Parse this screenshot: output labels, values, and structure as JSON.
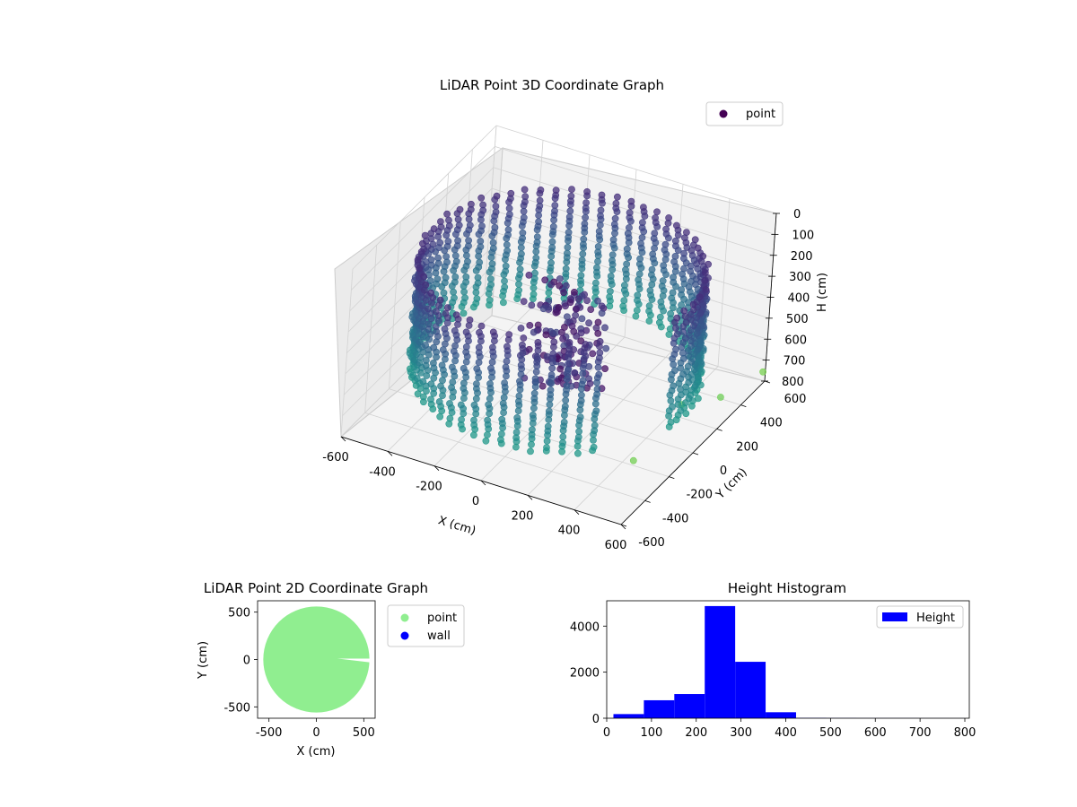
{
  "chart_data": [
    {
      "type": "scatter",
      "projection": "3d",
      "title": "LiDAR Point 3D Coordinate Graph",
      "xlabel": "X (cm)",
      "ylabel": "Y (cm)",
      "zlabel": "H (cm)",
      "xlim": [
        -600,
        600
      ],
      "ylim": [
        -600,
        600
      ],
      "zlim": [
        800,
        0
      ],
      "xticks": [
        "-600",
        "-400",
        "-200",
        "0",
        "200",
        "400",
        "600"
      ],
      "yticks": [
        "-600",
        "-400",
        "-200",
        "0",
        "200",
        "400",
        "600"
      ],
      "zticks": [
        "0",
        "100",
        "200",
        "300",
        "400",
        "500",
        "600",
        "700",
        "800"
      ],
      "colormap": "viridis",
      "grid": true,
      "legend": {
        "placement": "top-right",
        "entries": [
          {
            "label": "point",
            "color": "#440154"
          }
        ]
      },
      "series": [
        {
          "name": "point",
          "description_of_shape": "ring of vertical scan columns",
          "ring_radius": 560,
          "h_range": [
            120,
            640
          ],
          "extra_points": [
            [
              470,
              -250,
              740
            ],
            [
              520,
              40,
              620
            ],
            [
              560,
              300,
              720
            ],
            [
              590,
              600,
              760
            ]
          ]
        }
      ]
    },
    {
      "type": "scatter",
      "title": "LiDAR Point 2D Coordinate Graph",
      "xlabel": "X (cm)",
      "ylabel": "Y (cm)",
      "xlim": [
        -620,
        620
      ],
      "ylim": [
        -620,
        620
      ],
      "xticks": [
        "-500",
        "0",
        "500"
      ],
      "yticks": [
        "500",
        "0",
        "-500"
      ],
      "grid": false,
      "legend": {
        "placement": "outside-right",
        "entries": [
          {
            "label": "point",
            "color": "#90ee90"
          },
          {
            "label": "wall",
            "color": "#0000ff"
          }
        ]
      },
      "series": [
        {
          "name": "point",
          "color": "#90ee90",
          "shape": "disc",
          "radius": 560,
          "center": [
            0,
            0
          ]
        },
        {
          "name": "wall",
          "color": "#0000ff",
          "points": []
        }
      ]
    },
    {
      "type": "bar",
      "subtype": "histogram",
      "title": "Height Histogram",
      "xlabel": "",
      "ylabel": "",
      "xlim": [
        0,
        810
      ],
      "ylim": [
        0,
        5100
      ],
      "xticks": [
        "0",
        "100",
        "200",
        "300",
        "400",
        "500",
        "600",
        "700",
        "800"
      ],
      "yticks": [
        "0",
        "2000",
        "4000"
      ],
      "color": "#0000ff",
      "legend": {
        "placement": "top-right",
        "entries": [
          {
            "label": "Height",
            "color": "#0000ff"
          }
        ]
      },
      "bins": [
        {
          "x0": 15,
          "x1": 83,
          "value": 180
        },
        {
          "x0": 83,
          "x1": 151,
          "value": 780
        },
        {
          "x0": 151,
          "x1": 219,
          "value": 1050
        },
        {
          "x0": 219,
          "x1": 287,
          "value": 4870
        },
        {
          "x0": 287,
          "x1": 355,
          "value": 2450
        },
        {
          "x0": 355,
          "x1": 423,
          "value": 260
        },
        {
          "x0": 423,
          "x1": 491,
          "value": 15
        },
        {
          "x0": 491,
          "x1": 559,
          "value": 8
        },
        {
          "x0": 559,
          "x1": 627,
          "value": 6
        },
        {
          "x0": 627,
          "x1": 695,
          "value": 5
        },
        {
          "x0": 695,
          "x1": 763,
          "value": 4
        },
        {
          "x0": 763,
          "x1": 800,
          "value": 3
        }
      ]
    }
  ]
}
